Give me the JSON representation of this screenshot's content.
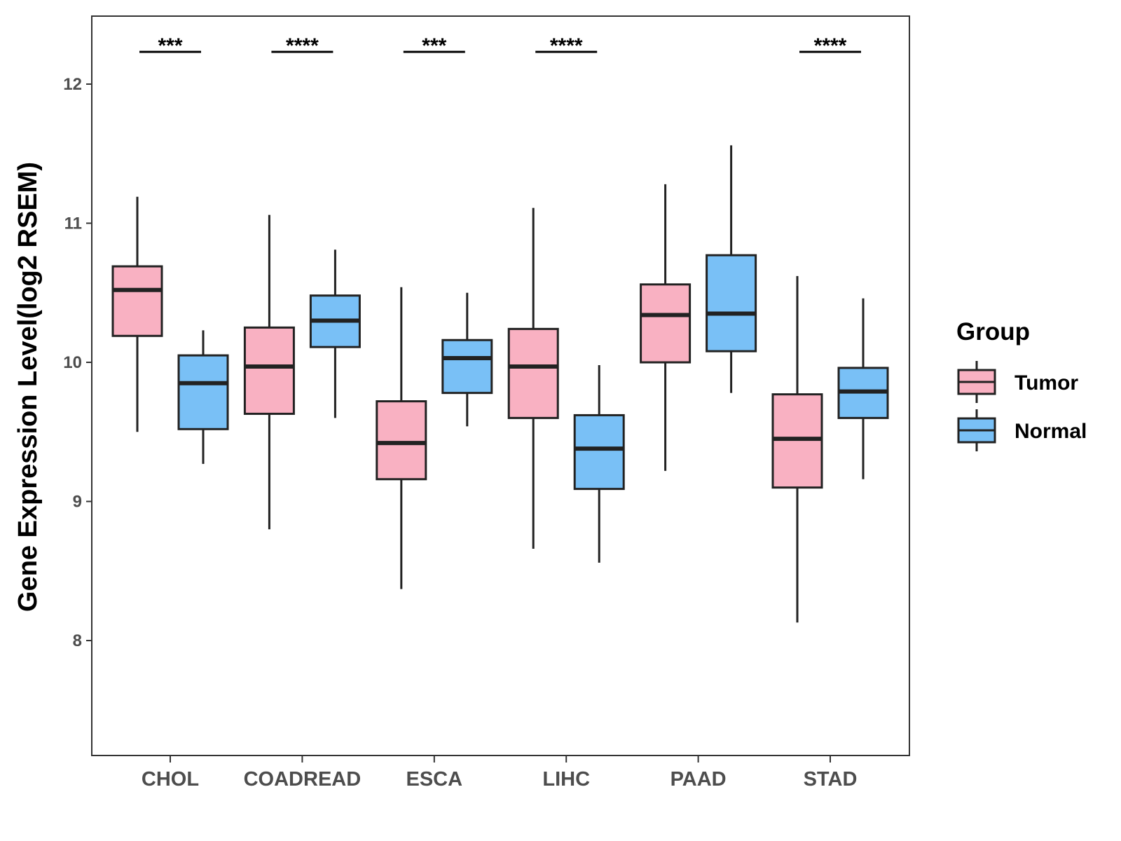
{
  "chart_data": {
    "type": "boxplot",
    "title": "",
    "xlabel": "",
    "ylabel": "Gene Expression Level(log2 RSEM)",
    "ylim": [
      7.2,
      12.5
    ],
    "yticks": [
      8,
      9,
      10,
      11,
      12
    ],
    "ytick_labels": [
      "8",
      "9",
      "10",
      "11",
      "12"
    ],
    "categories": [
      "CHOL",
      "COADREAD",
      "ESCA",
      "LIHC",
      "PAAD",
      "STAD"
    ],
    "legend": {
      "title": "Group",
      "position": "right",
      "items": [
        {
          "label": "Tumor",
          "color": "#f9b1c2"
        },
        {
          "label": "Normal",
          "color": "#79c0f6"
        }
      ]
    },
    "series": [
      {
        "name": "Tumor",
        "color": "#f9b1c2",
        "boxes": [
          {
            "min": 9.5,
            "q1": 10.19,
            "median": 10.52,
            "q3": 10.69,
            "max": 11.19
          },
          {
            "min": 8.8,
            "q1": 9.63,
            "median": 9.97,
            "q3": 10.25,
            "max": 11.06
          },
          {
            "min": 8.37,
            "q1": 9.16,
            "median": 9.42,
            "q3": 9.72,
            "max": 10.54
          },
          {
            "min": 8.66,
            "q1": 9.6,
            "median": 9.97,
            "q3": 10.24,
            "max": 11.11
          },
          {
            "min": 9.22,
            "q1": 10.0,
            "median": 10.34,
            "q3": 10.56,
            "max": 11.28
          },
          {
            "min": 8.13,
            "q1": 9.1,
            "median": 9.45,
            "q3": 9.77,
            "max": 10.62
          }
        ]
      },
      {
        "name": "Normal",
        "color": "#79c0f6",
        "boxes": [
          {
            "min": 9.27,
            "q1": 9.52,
            "median": 9.85,
            "q3": 10.05,
            "max": 10.23
          },
          {
            "min": 9.6,
            "q1": 10.11,
            "median": 10.3,
            "q3": 10.48,
            "max": 10.81
          },
          {
            "min": 9.54,
            "q1": 9.78,
            "median": 10.03,
            "q3": 10.16,
            "max": 10.5
          },
          {
            "min": 8.56,
            "q1": 9.09,
            "median": 9.38,
            "q3": 9.62,
            "max": 9.98
          },
          {
            "min": 9.78,
            "q1": 10.08,
            "median": 10.35,
            "q3": 10.77,
            "max": 11.56
          },
          {
            "min": 9.16,
            "q1": 9.6,
            "median": 9.79,
            "q3": 9.96,
            "max": 10.46
          }
        ]
      }
    ],
    "significance": [
      "***",
      "****",
      "***",
      "****",
      "",
      "****"
    ]
  }
}
